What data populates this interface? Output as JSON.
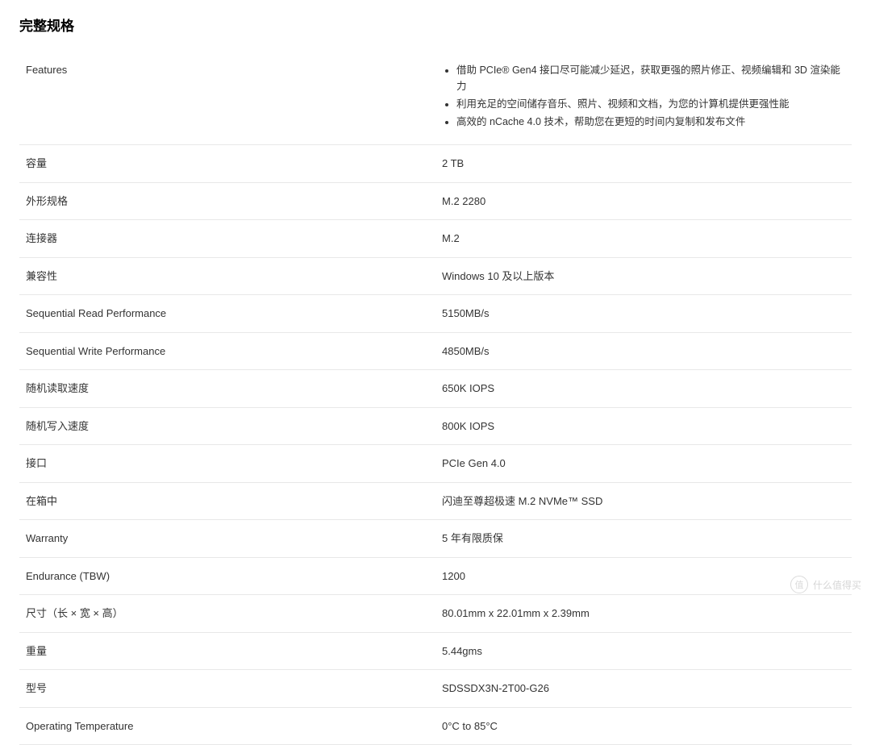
{
  "title": "完整规格",
  "features": {
    "label": "Features",
    "items": [
      "借助 PCIe® Gen4 接口尽可能减少延迟，获取更强的照片修正、视频编辑和 3D 渲染能力",
      "利用充足的空间储存音乐、照片、视频和文档，为您的计算机提供更强性能",
      "高效的 nCache 4.0 技术，帮助您在更短的时间内复制和发布文件"
    ]
  },
  "specs": [
    {
      "label": "容量",
      "value": "2 TB"
    },
    {
      "label": "外形规格",
      "value": "M.2 2280"
    },
    {
      "label": "连接器",
      "value": "M.2"
    },
    {
      "label": "兼容性",
      "value": "Windows 10 及以上版本"
    },
    {
      "label": "Sequential Read Performance",
      "value": "5150MB/s"
    },
    {
      "label": "Sequential Write Performance",
      "value": "4850MB/s"
    },
    {
      "label": "随机读取速度",
      "value": "650K IOPS"
    },
    {
      "label": "随机写入速度",
      "value": "800K IOPS"
    },
    {
      "label": "接口",
      "value": "PCIe Gen 4.0"
    },
    {
      "label": "在箱中",
      "value": "闪迪至尊超极速 M.2 NVMe™ SSD"
    },
    {
      "label": "Warranty",
      "value": "5 年有限质保"
    },
    {
      "label": "Endurance (TBW)",
      "value": "1200"
    },
    {
      "label": "尺寸（长 × 宽 × 高）",
      "value": "80.01mm x 22.01mm x 2.39mm"
    },
    {
      "label": "重量",
      "value": "5.44gms"
    },
    {
      "label": "型号",
      "value": "SDSSDX3N-2T00-G26"
    },
    {
      "label": "Operating Temperature",
      "value": "0°C to 85°C"
    }
  ],
  "watermark": {
    "icon_text": "值",
    "text": "什么值得买"
  },
  "colors": {
    "background": "#ffffff",
    "text": "#333333",
    "title": "#000000",
    "border": "#e8e8e8"
  },
  "typography": {
    "title_fontsize": 17,
    "body_fontsize": 13,
    "features_fontsize": 12.5
  }
}
